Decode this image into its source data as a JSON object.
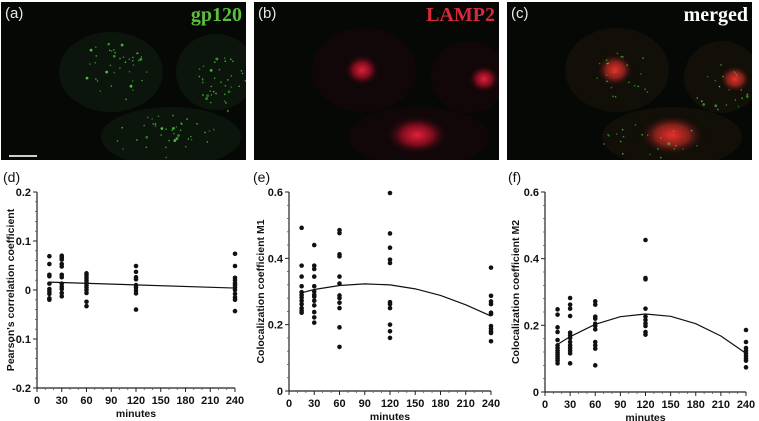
{
  "panels": {
    "a": {
      "label": "(a)",
      "title": "gp120",
      "color": "#5bbf3a"
    },
    "b": {
      "label": "(b)",
      "title": "LAMP2",
      "color": "#d8283c"
    },
    "c": {
      "label": "(c)",
      "title": "merged",
      "color": "#ffffff"
    }
  },
  "chart_data": [
    {
      "panel": "(d)",
      "type": "scatter",
      "title": "",
      "xlabel": "minutes",
      "ylabel": "Pearson's correlation coefficient",
      "xlim": [
        0,
        240
      ],
      "ylim": [
        -0.2,
        0.2
      ],
      "xticks": [
        0,
        30,
        60,
        90,
        120,
        150,
        180,
        210,
        240
      ],
      "yticks": [
        -0.2,
        -0.1,
        0,
        0.1,
        0.2
      ],
      "ytick_labels": [
        "-0.2",
        "-0.1",
        "0",
        "0.1",
        "0.2"
      ],
      "points": [
        {
          "x": 15,
          "y": [
            0.069,
            0.053,
            0.031,
            0.028,
            0.013,
            0.002,
            -0.003,
            -0.008,
            -0.017,
            -0.02
          ]
        },
        {
          "x": 30,
          "y": [
            0.07,
            0.066,
            0.062,
            0.053,
            0.048,
            0.031,
            0.026,
            0.013,
            0.007,
            0.002,
            -0.006,
            -0.013
          ]
        },
        {
          "x": 60,
          "y": [
            0.034,
            0.03,
            0.025,
            0.02,
            0.015,
            0.01,
            0.005,
            0.0,
            -0.006,
            -0.024,
            -0.033
          ]
        },
        {
          "x": 120,
          "y": [
            0.049,
            0.037,
            0.026,
            0.022,
            0.01,
            0.005,
            -0.001,
            -0.007,
            -0.04
          ]
        },
        {
          "x": 240,
          "y": [
            0.074,
            0.049,
            0.025,
            0.02,
            0.014,
            0.01,
            0.005,
            0.0,
            -0.008,
            -0.015,
            -0.02,
            -0.043
          ]
        }
      ],
      "fit": {
        "type": "linear",
        "x": [
          15,
          240
        ],
        "y": [
          0.016,
          0.004
        ]
      }
    },
    {
      "panel": "(e)",
      "type": "scatter",
      "title": "",
      "xlabel": "minutes",
      "ylabel": "Colocalization coefficient M1",
      "xlim": [
        0,
        240
      ],
      "ylim": [
        0,
        0.6
      ],
      "xticks": [
        0,
        30,
        60,
        90,
        120,
        150,
        180,
        210,
        240
      ],
      "yticks": [
        0,
        0.2,
        0.4,
        0.6
      ],
      "ytick_labels": [
        "0",
        "0.2",
        "0.4",
        "0.6"
      ],
      "points": [
        {
          "x": 15,
          "y": [
            0.492,
            0.378,
            0.345,
            0.316,
            0.298,
            0.29,
            0.282,
            0.272,
            0.262,
            0.25,
            0.242,
            0.236
          ]
        },
        {
          "x": 30,
          "y": [
            0.44,
            0.378,
            0.368,
            0.345,
            0.316,
            0.3,
            0.29,
            0.284,
            0.272,
            0.258,
            0.238,
            0.222,
            0.206
          ]
        },
        {
          "x": 60,
          "y": [
            0.485,
            0.476,
            0.412,
            0.406,
            0.345,
            0.324,
            0.288,
            0.28,
            0.266,
            0.25,
            0.192,
            0.133
          ]
        },
        {
          "x": 120,
          "y": [
            0.597,
            0.475,
            0.432,
            0.396,
            0.386,
            0.268,
            0.262,
            0.25,
            0.2,
            0.18,
            0.16
          ]
        },
        {
          "x": 240,
          "y": [
            0.372,
            0.287,
            0.27,
            0.262,
            0.236,
            0.232,
            0.196,
            0.188,
            0.18,
            0.175,
            0.15
          ]
        }
      ],
      "fit": {
        "type": "quadratic",
        "x": [
          15,
          30,
          60,
          90,
          120,
          150,
          180,
          210,
          240
        ],
        "y": [
          0.296,
          0.306,
          0.318,
          0.323,
          0.32,
          0.308,
          0.288,
          0.26,
          0.226
        ]
      }
    },
    {
      "panel": "(f)",
      "type": "scatter",
      "title": "",
      "xlabel": "minutes",
      "ylabel": "Colocalization coefficient M2",
      "xlim": [
        0,
        240
      ],
      "ylim": [
        0,
        0.6
      ],
      "xticks": [
        0,
        30,
        60,
        90,
        120,
        150,
        180,
        210,
        240
      ],
      "yticks": [
        0,
        0.2,
        0.4,
        0.6
      ],
      "ytick_labels": [
        "0",
        "0.2",
        "0.4",
        "0.6"
      ],
      "points": [
        {
          "x": 15,
          "y": [
            0.248,
            0.232,
            0.194,
            0.18,
            0.156,
            0.14,
            0.132,
            0.124,
            0.118,
            0.112,
            0.106,
            0.1,
            0.094,
            0.086
          ]
        },
        {
          "x": 30,
          "y": [
            0.282,
            0.262,
            0.25,
            0.228,
            0.178,
            0.17,
            0.162,
            0.15,
            0.14,
            0.132,
            0.124,
            0.116,
            0.086
          ]
        },
        {
          "x": 60,
          "y": [
            0.272,
            0.262,
            0.226,
            0.22,
            0.205,
            0.198,
            0.188,
            0.15,
            0.14,
            0.13,
            0.08
          ]
        },
        {
          "x": 120,
          "y": [
            0.456,
            0.342,
            0.338,
            0.25,
            0.226,
            0.216,
            0.206,
            0.198,
            0.18,
            0.172
          ]
        },
        {
          "x": 240,
          "y": [
            0.186,
            0.15,
            0.132,
            0.124,
            0.116,
            0.108,
            0.1,
            0.094,
            0.074
          ]
        }
      ],
      "fit": {
        "type": "quadratic",
        "x": [
          15,
          30,
          60,
          90,
          120,
          150,
          180,
          210,
          240
        ],
        "y": [
          0.143,
          0.166,
          0.203,
          0.226,
          0.234,
          0.227,
          0.205,
          0.168,
          0.116
        ]
      }
    }
  ],
  "charts": {
    "d": {
      "label": "(d)"
    },
    "e": {
      "label": "(e)"
    },
    "f": {
      "label": "(f)"
    }
  }
}
